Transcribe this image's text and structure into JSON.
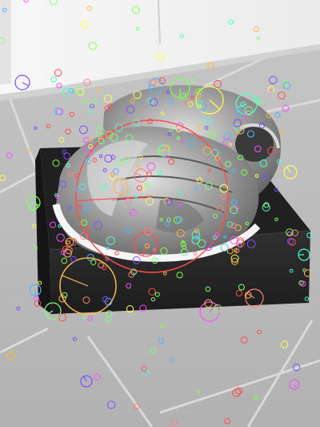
{
  "scene": {
    "description_label": "",
    "colors": {
      "floor_light": "#bdbdbd",
      "floor_mid": "#a9a9a9",
      "grout": "#dcdcdc",
      "cabinet": "#f2f2f2",
      "cabinet_shadow": "#d6d6d6",
      "box_top": "#1f1f1f",
      "box_front": "#2b2b2b",
      "shoe_metal": "#9a9a9a",
      "shoe_highlight": "#e6e6e6",
      "shoe_dark": "#3e3e3e",
      "sole": "#f4f4f4"
    }
  },
  "keypoint_overlay": {
    "visible": true,
    "style": "rich-keypoints",
    "palette": [
      "#ff4d4d",
      "#ffb84d",
      "#ffff4d",
      "#7dff4d",
      "#4dffd2",
      "#4db8ff",
      "#7d4dff",
      "#ff4dff",
      "#ff8080",
      "#80ff80"
    ]
  }
}
